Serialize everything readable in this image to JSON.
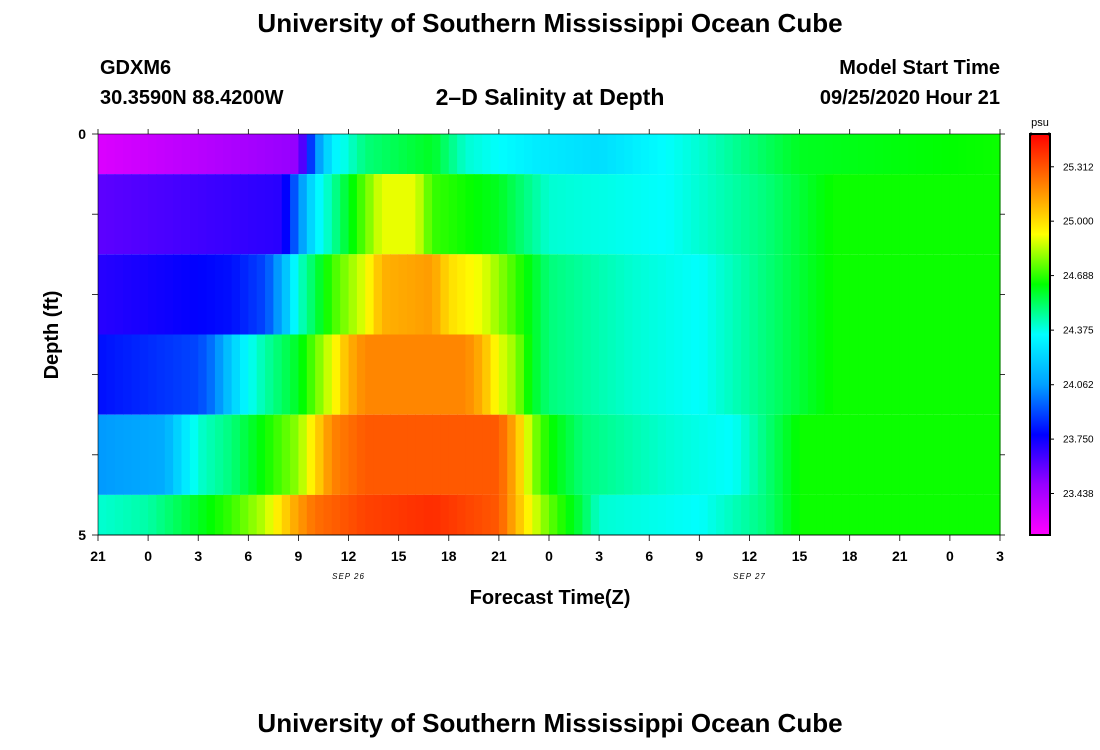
{
  "page": {
    "title": "University of Southern Mississippi Ocean Cube",
    "footer_title": "University of Southern Mississippi Ocean Cube",
    "station_id": "GDXM6",
    "coords": "30.3590N 88.4200W",
    "plot_title": "2–D Salinity at Depth",
    "model_start_label": "Model Start Time",
    "model_start_value": "09/25/2020 Hour 21"
  },
  "chart_data": {
    "type": "heatmap",
    "title": "2–D Salinity at Depth",
    "xlabel": "Forecast Time(Z)",
    "ylabel": "Depth (ft)",
    "x_range_hours": [
      0,
      54
    ],
    "x_tick_labels": [
      "21",
      "0",
      "3",
      "6",
      "9",
      "12",
      "15",
      "18",
      "21",
      "0",
      "3",
      "6",
      "9",
      "12",
      "15",
      "18",
      "21",
      "0",
      "3"
    ],
    "x_date_labels": [
      {
        "label": "SEP 26",
        "at_hour": 15
      },
      {
        "label": "SEP 27",
        "at_hour": 39
      }
    ],
    "y_range": [
      0,
      5
    ],
    "y_tick_labels": [
      {
        "value": 0,
        "label": "0"
      },
      {
        "value": 1,
        "label": ""
      },
      {
        "value": 2,
        "label": ""
      },
      {
        "value": 3,
        "label": ""
      },
      {
        "value": 4,
        "label": ""
      },
      {
        "value": 5,
        "label": "5"
      }
    ],
    "colorbar": {
      "unit": "psu",
      "min": 23.2,
      "max": 25.5,
      "ticks": [
        "25.312",
        "25.000",
        "24.688",
        "24.375",
        "24.062",
        "23.750",
        "23.438"
      ],
      "colors": [
        "#ff00ff",
        "#9900ff",
        "#0000ff",
        "#00a0ff",
        "#00ffff",
        "#00ff00",
        "#ffff00",
        "#ff8000",
        "#ff0000"
      ]
    },
    "depth_layers": [
      {
        "depth_range": [
          0,
          0.5
        ],
        "keyframes": [
          [
            0,
            23.3
          ],
          [
            12,
            23.5
          ],
          [
            13,
            24.0
          ],
          [
            14,
            24.3
          ],
          [
            16,
            24.5
          ],
          [
            20,
            24.6
          ],
          [
            22,
            24.4
          ],
          [
            26,
            24.3
          ],
          [
            30,
            24.25
          ],
          [
            36,
            24.4
          ],
          [
            42,
            24.6
          ],
          [
            54,
            24.65
          ]
        ]
      },
      {
        "depth_range": [
          0.5,
          1.5
        ],
        "keyframes": [
          [
            0,
            23.6
          ],
          [
            11,
            23.7
          ],
          [
            12,
            24.0
          ],
          [
            13,
            24.3
          ],
          [
            15,
            24.6
          ],
          [
            17,
            24.9
          ],
          [
            19,
            24.9
          ],
          [
            20,
            24.7
          ],
          [
            24,
            24.6
          ],
          [
            27,
            24.4
          ],
          [
            34,
            24.35
          ],
          [
            40,
            24.5
          ],
          [
            44,
            24.65
          ],
          [
            54,
            24.65
          ]
        ]
      },
      {
        "depth_range": [
          1.5,
          2.5
        ],
        "keyframes": [
          [
            0,
            23.7
          ],
          [
            8,
            23.8
          ],
          [
            10,
            23.9
          ],
          [
            11,
            24.1
          ],
          [
            12,
            24.4
          ],
          [
            14,
            24.7
          ],
          [
            16,
            24.9
          ],
          [
            17,
            25.1
          ],
          [
            20,
            25.15
          ],
          [
            21,
            25.0
          ],
          [
            23,
            24.9
          ],
          [
            25,
            24.7
          ],
          [
            27,
            24.5
          ],
          [
            32,
            24.4
          ],
          [
            36,
            24.35
          ],
          [
            40,
            24.5
          ],
          [
            44,
            24.65
          ],
          [
            54,
            24.65
          ]
        ]
      },
      {
        "depth_range": [
          2.5,
          3.5
        ],
        "keyframes": [
          [
            0,
            23.8
          ],
          [
            6,
            23.9
          ],
          [
            7,
            24.0
          ],
          [
            8,
            24.2
          ],
          [
            9,
            24.35
          ],
          [
            10,
            24.45
          ],
          [
            12,
            24.6
          ],
          [
            14,
            24.9
          ],
          [
            15,
            25.1
          ],
          [
            16,
            25.2
          ],
          [
            22,
            25.2
          ],
          [
            23,
            25.1
          ],
          [
            24,
            24.9
          ],
          [
            25,
            24.8
          ],
          [
            26,
            24.6
          ],
          [
            27,
            24.5
          ],
          [
            32,
            24.4
          ],
          [
            36,
            24.35
          ],
          [
            40,
            24.5
          ],
          [
            44,
            24.65
          ],
          [
            54,
            24.65
          ]
        ]
      },
      {
        "depth_range": [
          3.5,
          4.5
        ],
        "keyframes": [
          [
            0,
            24.05
          ],
          [
            4,
            24.1
          ],
          [
            5,
            24.25
          ],
          [
            6,
            24.4
          ],
          [
            8,
            24.5
          ],
          [
            10,
            24.65
          ],
          [
            12,
            24.8
          ],
          [
            13,
            25.0
          ],
          [
            14,
            25.2
          ],
          [
            16,
            25.3
          ],
          [
            24,
            25.3
          ],
          [
            25,
            25.1
          ],
          [
            25.5,
            24.95
          ],
          [
            26,
            24.8
          ],
          [
            27,
            24.65
          ],
          [
            29,
            24.5
          ],
          [
            34,
            24.4
          ],
          [
            38,
            24.35
          ],
          [
            40,
            24.5
          ],
          [
            42,
            24.65
          ],
          [
            54,
            24.65
          ]
        ]
      },
      {
        "depth_range": [
          4.5,
          5
        ],
        "keyframes": [
          [
            0,
            24.4
          ],
          [
            3,
            24.45
          ],
          [
            5,
            24.55
          ],
          [
            8,
            24.7
          ],
          [
            10,
            24.85
          ],
          [
            11,
            25.0
          ],
          [
            12,
            25.15
          ],
          [
            13,
            25.25
          ],
          [
            16,
            25.35
          ],
          [
            20,
            25.4
          ],
          [
            24,
            25.3
          ],
          [
            25,
            25.1
          ],
          [
            26,
            24.9
          ],
          [
            27,
            24.75
          ],
          [
            28,
            24.65
          ],
          [
            29,
            24.55
          ],
          [
            30,
            24.4
          ],
          [
            36,
            24.35
          ],
          [
            40,
            24.5
          ],
          [
            42,
            24.65
          ],
          [
            54,
            24.65
          ]
        ]
      }
    ]
  }
}
